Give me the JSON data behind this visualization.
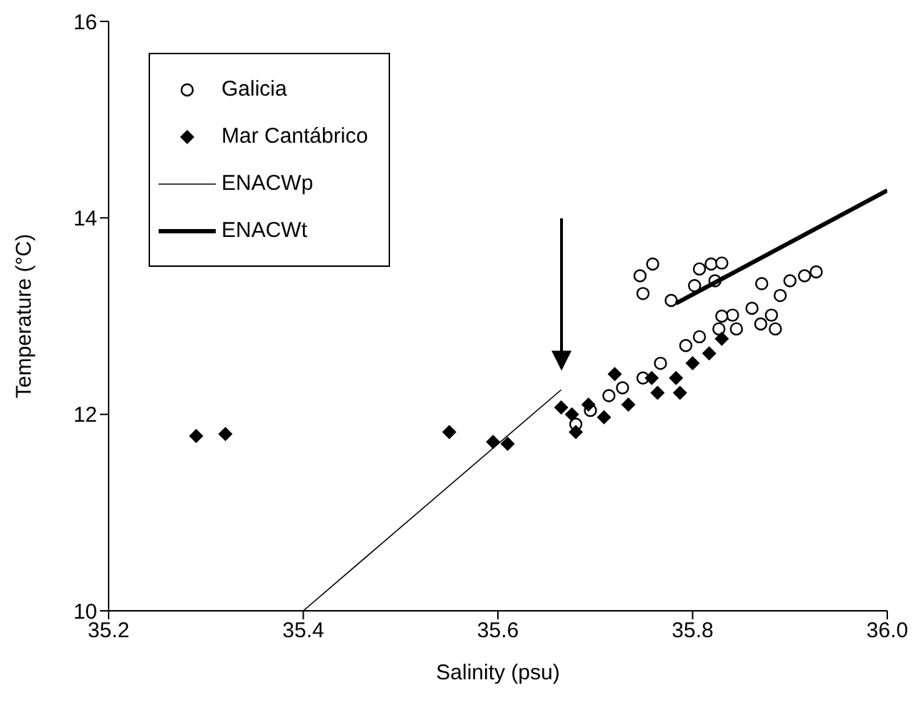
{
  "chart_data": {
    "type": "scatter",
    "xlabel": "Salinity (psu)",
    "ylabel": "Temperature (°C)",
    "xlim": [
      35.2,
      36.0
    ],
    "xticks": [
      35.2,
      35.4,
      35.6,
      35.8,
      {
        "value": 36.0,
        "label": "36.0"
      }
    ],
    "ylim": [
      10,
      16
    ],
    "yticks": [
      10,
      12,
      14,
      16
    ],
    "grid": false,
    "legend": "top left",
    "series": [
      {
        "name": "Galicia",
        "color": "#000000",
        "marker": "circle",
        "x": [
          35.68,
          35.695,
          35.714,
          35.728,
          35.749,
          35.767,
          35.793,
          35.807,
          35.827,
          35.841,
          35.861,
          35.881,
          35.89,
          35.9,
          35.915,
          35.927,
          35.885,
          35.845,
          35.87,
          35.83,
          35.746,
          35.749,
          35.759,
          35.778,
          35.807,
          35.819,
          35.83,
          35.823,
          35.802,
          35.871
        ],
        "values": [
          11.9,
          12.04,
          12.19,
          12.27,
          12.37,
          12.52,
          12.7,
          12.79,
          12.87,
          13.01,
          13.08,
          13.01,
          13.21,
          13.36,
          13.41,
          13.45,
          12.87,
          12.87,
          12.92,
          13.0,
          13.41,
          13.23,
          13.53,
          13.16,
          13.48,
          13.53,
          13.54,
          13.36,
          13.31,
          13.33
        ]
      },
      {
        "name": "Mar Cantábrico",
        "color": "#000000",
        "marker": "diamond",
        "x": [
          35.29,
          35.32,
          35.55,
          35.595,
          35.61,
          35.665,
          35.68,
          35.693,
          35.676,
          35.709,
          35.734,
          35.72,
          35.764,
          35.783,
          35.8,
          35.817,
          35.83,
          35.787,
          35.758
        ],
        "values": [
          11.78,
          11.8,
          11.82,
          11.72,
          11.7,
          12.07,
          11.82,
          12.1,
          12.0,
          11.97,
          12.1,
          12.41,
          12.22,
          12.37,
          12.52,
          12.62,
          12.77,
          12.22,
          12.37
        ]
      },
      {
        "name": "ENACWp",
        "type": "line",
        "color": "#000000",
        "marker": "none",
        "x": [
          35.4,
          35.665
        ],
        "values": [
          10,
          12.25
        ]
      },
      {
        "name": "ENACWt",
        "type": "line",
        "color": "#000000",
        "marker": "none",
        "x": [
          35.783,
          36.0
        ],
        "values": [
          13.13,
          14.28
        ]
      }
    ]
  }
}
